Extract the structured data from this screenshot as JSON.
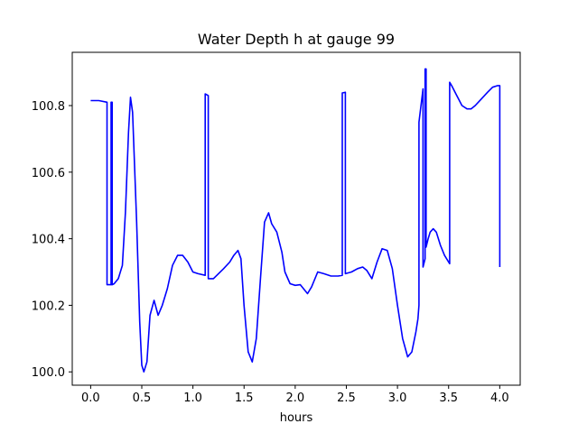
{
  "chart_data": {
    "type": "line",
    "title": "Water Depth h at gauge 99",
    "xlabel": "hours",
    "ylabel": "",
    "xlim": [
      -0.18,
      4.2
    ],
    "ylim": [
      99.96,
      100.96
    ],
    "xticks": [
      0.0,
      0.5,
      1.0,
      1.5,
      2.0,
      2.5,
      3.0,
      3.5,
      4.0
    ],
    "xtick_labels": [
      "0.0",
      "0.5",
      "1.0",
      "1.5",
      "2.0",
      "2.5",
      "3.0",
      "3.5",
      "4.0"
    ],
    "yticks": [
      100.0,
      100.2,
      100.4,
      100.6,
      100.8
    ],
    "ytick_labels": [
      "100.0",
      "100.2",
      "100.4",
      "100.6",
      "100.8"
    ],
    "grid": false,
    "series": [
      {
        "color": "#0000ff",
        "x": [
          0.0,
          0.08,
          0.16,
          0.16,
          0.2,
          0.2,
          0.21,
          0.21,
          0.23,
          0.27,
          0.31,
          0.34,
          0.37,
          0.39,
          0.41,
          0.45,
          0.48,
          0.5,
          0.52,
          0.55,
          0.58,
          0.62,
          0.66,
          0.7,
          0.75,
          0.8,
          0.85,
          0.9,
          0.95,
          1.0,
          1.05,
          1.12,
          1.12,
          1.15,
          1.15,
          1.2,
          1.3,
          1.36,
          1.4,
          1.44,
          1.47,
          1.5,
          1.54,
          1.58,
          1.62,
          1.66,
          1.7,
          1.74,
          1.77,
          1.82,
          1.87,
          1.9,
          1.95,
          2.0,
          2.05,
          2.12,
          2.16,
          2.22,
          2.28,
          2.35,
          2.42,
          2.46,
          2.46,
          2.49,
          2.49,
          2.55,
          2.61,
          2.66,
          2.7,
          2.75,
          2.8,
          2.85,
          2.9,
          2.95,
          3.0,
          3.05,
          3.1,
          3.14,
          3.18,
          3.2,
          3.21,
          3.21,
          3.25,
          3.25,
          3.27,
          3.27,
          3.28,
          3.28,
          3.3,
          3.32,
          3.35,
          3.38,
          3.42,
          3.46,
          3.51,
          3.51,
          3.53,
          3.58,
          3.63,
          3.68,
          3.72,
          3.76,
          3.82,
          3.88,
          3.93,
          3.98,
          4.0,
          4.0
        ],
        "y": [
          100.815,
          100.815,
          100.81,
          100.262,
          100.262,
          100.81,
          100.81,
          100.262,
          100.265,
          100.28,
          100.32,
          100.48,
          100.72,
          100.825,
          100.78,
          100.45,
          100.15,
          100.02,
          100.0,
          100.03,
          100.17,
          100.215,
          100.17,
          100.2,
          100.25,
          100.32,
          100.35,
          100.35,
          100.33,
          100.3,
          100.295,
          100.29,
          100.835,
          100.83,
          100.28,
          100.28,
          100.31,
          100.33,
          100.35,
          100.365,
          100.34,
          100.2,
          100.06,
          100.03,
          100.1,
          100.28,
          100.45,
          100.478,
          100.445,
          100.42,
          100.36,
          100.3,
          100.265,
          100.26,
          100.262,
          100.235,
          100.255,
          100.3,
          100.295,
          100.288,
          100.288,
          100.29,
          100.838,
          100.84,
          100.295,
          100.3,
          100.31,
          100.315,
          100.305,
          100.28,
          100.33,
          100.37,
          100.365,
          100.31,
          100.2,
          100.1,
          100.045,
          100.06,
          100.12,
          100.16,
          100.2,
          100.75,
          100.85,
          100.315,
          100.34,
          100.91,
          100.91,
          100.375,
          100.4,
          100.42,
          100.43,
          100.42,
          100.38,
          100.35,
          100.325,
          100.87,
          100.86,
          100.83,
          100.8,
          100.79,
          100.79,
          100.8,
          100.82,
          100.84,
          100.855,
          100.86,
          100.86,
          100.315
        ]
      }
    ]
  }
}
